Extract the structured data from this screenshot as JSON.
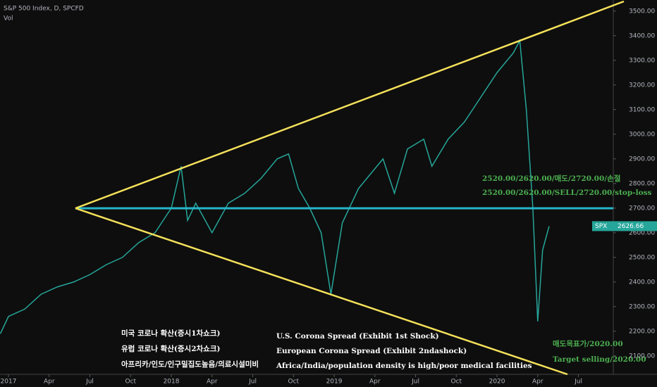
{
  "chart_data": {
    "type": "line",
    "title": "S&P 500 Index, D, SPCFD",
    "subtitle": "Vol",
    "x": [
      2016.95,
      2017.0,
      2017.1,
      2017.2,
      2017.3,
      2017.4,
      2017.5,
      2017.6,
      2017.7,
      2017.8,
      2017.9,
      2018.0,
      2018.06,
      2018.1,
      2018.15,
      2018.25,
      2018.35,
      2018.45,
      2018.55,
      2018.65,
      2018.72,
      2018.78,
      2018.85,
      2018.92,
      2018.98,
      2019.05,
      2019.15,
      2019.3,
      2019.37,
      2019.45,
      2019.55,
      2019.6,
      2019.7,
      2019.8,
      2019.9,
      2020.0,
      2020.1,
      2020.14,
      2020.18,
      2020.22,
      2020.25,
      2020.28,
      2020.32
    ],
    "series": [
      {
        "name": "SPX",
        "color": "#26a69a",
        "values": [
          2190,
          2260,
          2290,
          2350,
          2380,
          2400,
          2430,
          2470,
          2500,
          2560,
          2600,
          2700,
          2870,
          2650,
          2720,
          2600,
          2720,
          2760,
          2820,
          2900,
          2920,
          2780,
          2700,
          2600,
          2350,
          2640,
          2780,
          2900,
          2760,
          2940,
          2980,
          2870,
          2980,
          3050,
          3150,
          3250,
          3330,
          3380,
          3100,
          2700,
          2240,
          2530,
          2626.66
        ]
      }
    ],
    "xlim": [
      2016.948,
      2020.714
    ],
    "xticks": [
      {
        "value": 2017,
        "label": "2017"
      },
      {
        "value": 2017.25,
        "label": "Apr"
      },
      {
        "value": 2017.5,
        "label": "Jul"
      },
      {
        "value": 2017.75,
        "label": "Oct"
      },
      {
        "value": 2018,
        "label": "2018"
      },
      {
        "value": 2018.25,
        "label": "Apr"
      },
      {
        "value": 2018.5,
        "label": "Jul"
      },
      {
        "value": 2018.75,
        "label": "Oct"
      },
      {
        "value": 2019,
        "label": "2019"
      },
      {
        "value": 2019.25,
        "label": "Apr"
      },
      {
        "value": 2019.5,
        "label": "Jul"
      },
      {
        "value": 2019.75,
        "label": "Oct"
      },
      {
        "value": 2020,
        "label": "2020"
      },
      {
        "value": 2020.25,
        "label": "Apr"
      },
      {
        "value": 2020.5,
        "label": "Jul"
      }
    ],
    "ylim": [
      2025,
      3545
    ],
    "yticks": [
      {
        "value": 2100,
        "label": "2100.00"
      },
      {
        "value": 2200,
        "label": "2200.00"
      },
      {
        "value": 2300,
        "label": "2300.00"
      },
      {
        "value": 2400,
        "label": "2400.00"
      },
      {
        "value": 2500,
        "label": "2500.00"
      },
      {
        "value": 2600,
        "label": "2600.00"
      },
      {
        "value": 2700,
        "label": "2700.00"
      },
      {
        "value": 2800,
        "label": "2800.00"
      },
      {
        "value": 2900,
        "label": "2900.00"
      },
      {
        "value": 3000,
        "label": "3000.00"
      },
      {
        "value": 3100,
        "label": "3100.00"
      },
      {
        "value": 3200,
        "label": "3200.00"
      },
      {
        "value": 3300,
        "label": "3300.00"
      },
      {
        "value": 3400,
        "label": "3400.00"
      },
      {
        "value": 3500,
        "label": "3500.00"
      }
    ],
    "annotations": [
      "2520.00/2620.00/매도/2720.00/손절",
      "2520.00/2620.00/SELL/2720.00/stop-loss",
      "미국 코로나 확산(증시1차쇼크)",
      "유럽 코로나 확산(증시2차쇼크)",
      "아프리카/인도/인구밀집도높음/의료시설미비",
      "U.S. Corona Spread (Exhibit 1st Shock)",
      "European Corona Spread (Exhibit 2ndashock)",
      "Africa/India/population density is high/poor medical facilities",
      "매도목표가/2020.00",
      "Target selling/2020.00"
    ]
  }
}
